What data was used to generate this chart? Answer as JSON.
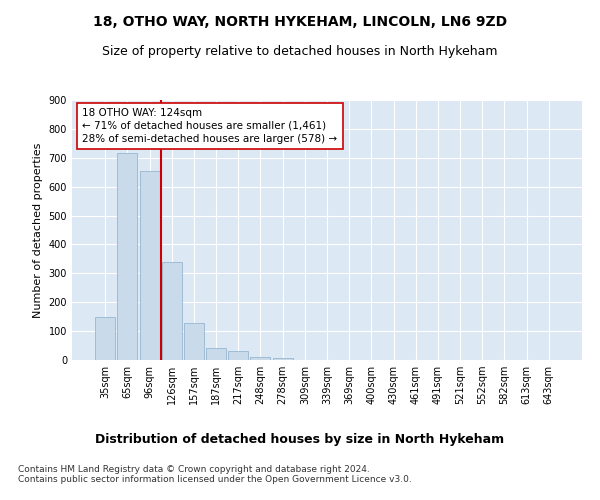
{
  "title_line1": "18, OTHO WAY, NORTH HYKEHAM, LINCOLN, LN6 9ZD",
  "title_line2": "Size of property relative to detached houses in North Hykeham",
  "xlabel": "Distribution of detached houses by size in North Hykeham",
  "ylabel": "Number of detached properties",
  "categories": [
    "35sqm",
    "65sqm",
    "96sqm",
    "126sqm",
    "157sqm",
    "187sqm",
    "217sqm",
    "248sqm",
    "278sqm",
    "309sqm",
    "339sqm",
    "369sqm",
    "400sqm",
    "430sqm",
    "461sqm",
    "491sqm",
    "521sqm",
    "552sqm",
    "582sqm",
    "613sqm",
    "643sqm"
  ],
  "values": [
    150,
    715,
    655,
    340,
    128,
    40,
    30,
    12,
    8,
    0,
    0,
    0,
    0,
    0,
    0,
    0,
    0,
    0,
    0,
    0,
    0
  ],
  "bar_color": "#c9daea",
  "bar_edgecolor": "#a0bcd4",
  "vline_color": "#cc0000",
  "annotation_text": "18 OTHO WAY: 124sqm\n← 71% of detached houses are smaller (1,461)\n28% of semi-detached houses are larger (578) →",
  "annotation_box_color": "#ffffff",
  "annotation_box_edgecolor": "#cc0000",
  "ylim": [
    0,
    900
  ],
  "yticks": [
    0,
    100,
    200,
    300,
    400,
    500,
    600,
    700,
    800,
    900
  ],
  "footer": "Contains HM Land Registry data © Crown copyright and database right 2024.\nContains public sector information licensed under the Open Government Licence v3.0.",
  "background_color": "#ffffff",
  "plot_background_color": "#dde8f5",
  "grid_color": "#ffffff",
  "title_fontsize": 10,
  "subtitle_fontsize": 9,
  "ylabel_fontsize": 8,
  "xlabel_fontsize": 9,
  "tick_fontsize": 7,
  "annotation_fontsize": 7.5,
  "footer_fontsize": 6.5
}
